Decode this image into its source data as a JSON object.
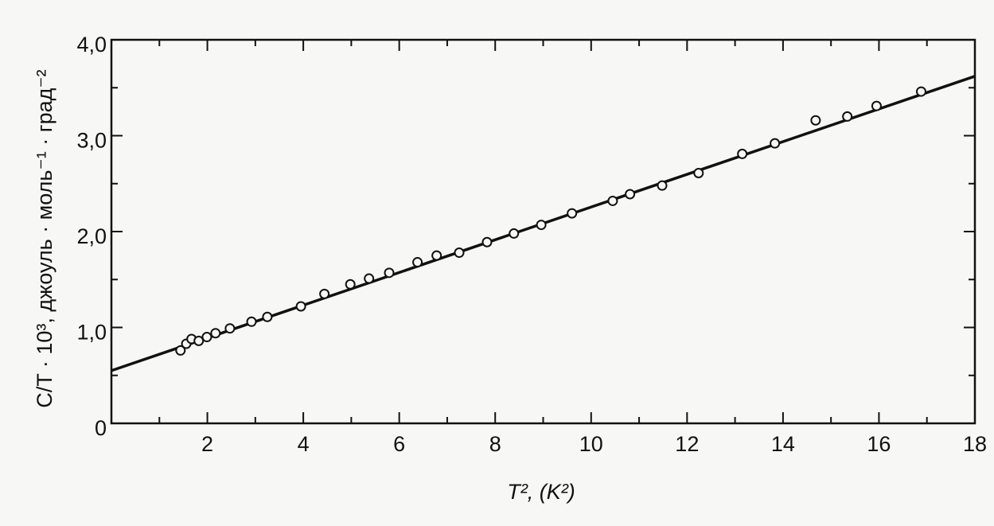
{
  "chart_data": {
    "type": "scatter",
    "xlabel": "T², (K²)",
    "ylabel": "C/T · 10³, джоуль · моль⁻¹ · град⁻²",
    "xlim": [
      0,
      18
    ],
    "ylim": [
      0,
      4
    ],
    "xticks": [
      2,
      4,
      6,
      8,
      10,
      12,
      14,
      16,
      18
    ],
    "xminorticks": [
      1,
      3,
      5,
      7,
      9,
      11,
      13,
      15,
      17
    ],
    "yticks": [
      {
        "value": 0,
        "label": "0"
      },
      {
        "value": 1,
        "label": "1,0"
      },
      {
        "value": 2,
        "label": "2,0"
      },
      {
        "value": 3,
        "label": "3,0"
      },
      {
        "value": 4,
        "label": "4,0"
      }
    ],
    "yminorticks": [
      0.5,
      1.5,
      2.5,
      3.5
    ],
    "color": "#111111",
    "points": {
      "x": [
        1.44,
        1.56,
        1.67,
        1.82,
        1.99,
        2.17,
        2.47,
        2.92,
        3.25,
        3.95,
        4.44,
        4.98,
        5.37,
        5.79,
        6.38,
        6.78,
        7.25,
        7.83,
        8.39,
        8.96,
        9.6,
        10.45,
        10.81,
        11.48,
        12.24,
        13.15,
        13.83,
        14.68,
        15.34,
        15.95,
        16.88
      ],
      "y": [
        0.76,
        0.83,
        0.88,
        0.86,
        0.9,
        0.94,
        0.99,
        1.06,
        1.11,
        1.22,
        1.35,
        1.45,
        1.51,
        1.57,
        1.68,
        1.75,
        1.78,
        1.89,
        1.98,
        2.07,
        2.19,
        2.32,
        2.39,
        2.48,
        2.61,
        2.81,
        2.92,
        3.16,
        3.2,
        3.31,
        3.46
      ]
    },
    "fit_line": {
      "x": [
        0,
        18
      ],
      "y": [
        0.55,
        3.62
      ]
    }
  }
}
